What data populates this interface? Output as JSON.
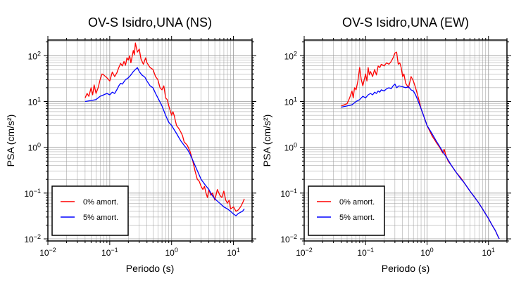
{
  "chart_data": [
    {
      "type": "line",
      "title": "OV-S Isidro,UNA (NS)",
      "xlabel": "Periodo (s)",
      "ylabel": "PSA (cm/s²)",
      "xscale": "log",
      "yscale": "log",
      "xlim": [
        0.01,
        20
      ],
      "ylim": [
        0.009,
        220
      ],
      "x_ticks": [
        {
          "base": "10",
          "exp": "−2"
        },
        {
          "base": "10",
          "exp": "−1"
        },
        {
          "base": "10",
          "exp": "0"
        },
        {
          "base": "10",
          "exp": "1"
        }
      ],
      "y_ticks": [
        {
          "base": "10",
          "exp": "−2"
        },
        {
          "base": "10",
          "exp": "−1"
        },
        {
          "base": "10",
          "exp": "0"
        },
        {
          "base": "10",
          "exp": "1"
        },
        {
          "base": "10",
          "exp": "2"
        }
      ],
      "grid": true,
      "legend_position": "bottom-left",
      "series": [
        {
          "name": "0% amort.",
          "color": "#ff0000",
          "points": [
            [
              0.04,
              12
            ],
            [
              0.043,
              15
            ],
            [
              0.046,
              13
            ],
            [
              0.05,
              20
            ],
            [
              0.053,
              14
            ],
            [
              0.056,
              23
            ],
            [
              0.06,
              15
            ],
            [
              0.065,
              20
            ],
            [
              0.07,
              30
            ],
            [
              0.075,
              40
            ],
            [
              0.08,
              38
            ],
            [
              0.09,
              33
            ],
            [
              0.1,
              28
            ],
            [
              0.11,
              44
            ],
            [
              0.12,
              35
            ],
            [
              0.13,
              42
            ],
            [
              0.14,
              55
            ],
            [
              0.15,
              68
            ],
            [
              0.16,
              60
            ],
            [
              0.17,
              75
            ],
            [
              0.18,
              62
            ],
            [
              0.19,
              90
            ],
            [
              0.2,
              80
            ],
            [
              0.21,
              100
            ],
            [
              0.22,
              70
            ],
            [
              0.23,
              95
            ],
            [
              0.24,
              130
            ],
            [
              0.25,
              105
            ],
            [
              0.26,
              190
            ],
            [
              0.27,
              150
            ],
            [
              0.28,
              120
            ],
            [
              0.3,
              140
            ],
            [
              0.32,
              85
            ],
            [
              0.35,
              65
            ],
            [
              0.38,
              90
            ],
            [
              0.4,
              70
            ],
            [
              0.45,
              55
            ],
            [
              0.5,
              50
            ],
            [
              0.55,
              35
            ],
            [
              0.6,
              30
            ],
            [
              0.65,
              20
            ],
            [
              0.7,
              18
            ],
            [
              0.75,
              22
            ],
            [
              0.8,
              12
            ],
            [
              0.85,
              11
            ],
            [
              0.9,
              8
            ],
            [
              1.0,
              5
            ],
            [
              1.05,
              6
            ],
            [
              1.1,
              5
            ],
            [
              1.2,
              3
            ],
            [
              1.3,
              2.6
            ],
            [
              1.4,
              2.2
            ],
            [
              1.5,
              1.8
            ],
            [
              1.6,
              1.3
            ],
            [
              1.7,
              1.2
            ],
            [
              1.8,
              1.1
            ],
            [
              2.0,
              0.8
            ],
            [
              2.2,
              0.5
            ],
            [
              2.4,
              0.3
            ],
            [
              2.6,
              0.2
            ],
            [
              2.8,
              0.18
            ],
            [
              3.0,
              0.14
            ],
            [
              3.2,
              0.12
            ],
            [
              3.4,
              0.14
            ],
            [
              3.6,
              0.1
            ],
            [
              3.8,
              0.08
            ],
            [
              4.0,
              0.12
            ],
            [
              4.3,
              0.09
            ],
            [
              4.6,
              0.1
            ],
            [
              5.0,
              0.07
            ],
            [
              5.5,
              0.12
            ],
            [
              6.0,
              0.09
            ],
            [
              6.5,
              0.08
            ],
            [
              7.0,
              0.11
            ],
            [
              7.5,
              0.07
            ],
            [
              8.0,
              0.06
            ],
            [
              8.5,
              0.07
            ],
            [
              9.0,
              0.045
            ],
            [
              10.0,
              0.05
            ],
            [
              11.0,
              0.04
            ],
            [
              12.0,
              0.043
            ],
            [
              13.0,
              0.05
            ],
            [
              14.0,
              0.06
            ],
            [
              15.0,
              0.075
            ]
          ]
        },
        {
          "name": "5% amort.",
          "color": "#0000ff",
          "points": [
            [
              0.04,
              10
            ],
            [
              0.05,
              10.5
            ],
            [
              0.06,
              11
            ],
            [
              0.07,
              13
            ],
            [
              0.08,
              14
            ],
            [
              0.09,
              15
            ],
            [
              0.1,
              14
            ],
            [
              0.11,
              16
            ],
            [
              0.12,
              15
            ],
            [
              0.13,
              18
            ],
            [
              0.14,
              22
            ],
            [
              0.15,
              25
            ],
            [
              0.16,
              24
            ],
            [
              0.17,
              27
            ],
            [
              0.18,
              30
            ],
            [
              0.2,
              33
            ],
            [
              0.22,
              38
            ],
            [
              0.24,
              45
            ],
            [
              0.26,
              50
            ],
            [
              0.28,
              55
            ],
            [
              0.3,
              45
            ],
            [
              0.33,
              38
            ],
            [
              0.37,
              34
            ],
            [
              0.4,
              28
            ],
            [
              0.45,
              22
            ],
            [
              0.5,
              20
            ],
            [
              0.55,
              15
            ],
            [
              0.6,
              12
            ],
            [
              0.7,
              8
            ],
            [
              0.8,
              5
            ],
            [
              0.9,
              3.5
            ],
            [
              1.0,
              3
            ],
            [
              1.2,
              2
            ],
            [
              1.4,
              1.4
            ],
            [
              1.6,
              1.1
            ],
            [
              1.8,
              0.9
            ],
            [
              2.0,
              0.7
            ],
            [
              2.5,
              0.35
            ],
            [
              3.0,
              0.2
            ],
            [
              3.5,
              0.15
            ],
            [
              4.0,
              0.12
            ],
            [
              4.5,
              0.09
            ],
            [
              5.0,
              0.075
            ],
            [
              6.0,
              0.06
            ],
            [
              7.0,
              0.05
            ],
            [
              8.0,
              0.045
            ],
            [
              9.0,
              0.04
            ],
            [
              10.0,
              0.035
            ],
            [
              11.0,
              0.032
            ],
            [
              12.0,
              0.036
            ],
            [
              13.0,
              0.038
            ],
            [
              14.0,
              0.04
            ],
            [
              15.0,
              0.045
            ]
          ]
        }
      ]
    },
    {
      "type": "line",
      "title": "OV-S Isidro,UNA (EW)",
      "xlabel": "Periodo (s)",
      "ylabel": "PSA (cm/s²)",
      "xscale": "log",
      "yscale": "log",
      "xlim": [
        0.01,
        20
      ],
      "ylim": [
        0.009,
        220
      ],
      "x_ticks": [
        {
          "base": "10",
          "exp": "−2"
        },
        {
          "base": "10",
          "exp": "−1"
        },
        {
          "base": "10",
          "exp": "0"
        },
        {
          "base": "10",
          "exp": "1"
        }
      ],
      "y_ticks": [
        {
          "base": "10",
          "exp": "−2"
        },
        {
          "base": "10",
          "exp": "−1"
        },
        {
          "base": "10",
          "exp": "0"
        },
        {
          "base": "10",
          "exp": "1"
        },
        {
          "base": "10",
          "exp": "2"
        }
      ],
      "grid": true,
      "legend_position": "bottom-left",
      "series": [
        {
          "name": "0% amort.",
          "color": "#ff0000",
          "points": [
            [
              0.04,
              8
            ],
            [
              0.045,
              8.5
            ],
            [
              0.05,
              9
            ],
            [
              0.055,
              12
            ],
            [
              0.06,
              17
            ],
            [
              0.063,
              12
            ],
            [
              0.066,
              20
            ],
            [
              0.07,
              18
            ],
            [
              0.075,
              28
            ],
            [
              0.08,
              55
            ],
            [
              0.085,
              30
            ],
            [
              0.09,
              22
            ],
            [
              0.095,
              30
            ],
            [
              0.1,
              40
            ],
            [
              0.105,
              28
            ],
            [
              0.11,
              55
            ],
            [
              0.115,
              38
            ],
            [
              0.12,
              45
            ],
            [
              0.13,
              35
            ],
            [
              0.14,
              50
            ],
            [
              0.15,
              38
            ],
            [
              0.16,
              60
            ],
            [
              0.17,
              55
            ],
            [
              0.18,
              65
            ],
            [
              0.2,
              60
            ],
            [
              0.22,
              70
            ],
            [
              0.24,
              65
            ],
            [
              0.26,
              75
            ],
            [
              0.28,
              90
            ],
            [
              0.3,
              115
            ],
            [
              0.32,
              120
            ],
            [
              0.34,
              65
            ],
            [
              0.36,
              70
            ],
            [
              0.38,
              55
            ],
            [
              0.4,
              35
            ],
            [
              0.42,
              40
            ],
            [
              0.45,
              25
            ],
            [
              0.5,
              20
            ],
            [
              0.55,
              35
            ],
            [
              0.6,
              28
            ],
            [
              0.65,
              20
            ],
            [
              0.7,
              14
            ],
            [
              0.75,
              10
            ],
            [
              0.8,
              7
            ],
            [
              0.9,
              4.5
            ],
            [
              1.0,
              3
            ],
            [
              1.1,
              2.3
            ],
            [
              1.2,
              1.8
            ],
            [
              1.4,
              1.3
            ],
            [
              1.6,
              1
            ],
            [
              1.8,
              0.75
            ],
            [
              1.9,
              0.9
            ],
            [
              2.0,
              0.7
            ],
            [
              2.2,
              0.5
            ],
            [
              2.5,
              0.4
            ],
            [
              3.0,
              0.28
            ],
            [
              3.5,
              0.22
            ],
            [
              4.0,
              0.17
            ],
            [
              5.0,
              0.11
            ],
            [
              6.0,
              0.08
            ],
            [
              7.0,
              0.06
            ],
            [
              8.0,
              0.045
            ],
            [
              9.0,
              0.035
            ],
            [
              10.0,
              0.028
            ],
            [
              11.0,
              0.022
            ],
            [
              12.0,
              0.018
            ],
            [
              13.0,
              0.015
            ],
            [
              14.0,
              0.012
            ],
            [
              15.0,
              0.01
            ]
          ]
        },
        {
          "name": "5% amort.",
          "color": "#0000ff",
          "points": [
            [
              0.04,
              7.5
            ],
            [
              0.05,
              8
            ],
            [
              0.06,
              8.5
            ],
            [
              0.07,
              10
            ],
            [
              0.08,
              11
            ],
            [
              0.09,
              13
            ],
            [
              0.1,
              12
            ],
            [
              0.11,
              14
            ],
            [
              0.12,
              15
            ],
            [
              0.13,
              14
            ],
            [
              0.14,
              16
            ],
            [
              0.15,
              15
            ],
            [
              0.16,
              17
            ],
            [
              0.17,
              16
            ],
            [
              0.18,
              18
            ],
            [
              0.2,
              17
            ],
            [
              0.22,
              19
            ],
            [
              0.24,
              20
            ],
            [
              0.26,
              19
            ],
            [
              0.28,
              22
            ],
            [
              0.3,
              24
            ],
            [
              0.32,
              20
            ],
            [
              0.35,
              22
            ],
            [
              0.4,
              21
            ],
            [
              0.45,
              20
            ],
            [
              0.5,
              21
            ],
            [
              0.55,
              18
            ],
            [
              0.6,
              17
            ],
            [
              0.65,
              14
            ],
            [
              0.7,
              11
            ],
            [
              0.8,
              7
            ],
            [
              0.9,
              4.5
            ],
            [
              1.0,
              3
            ],
            [
              1.2,
              2
            ],
            [
              1.4,
              1.4
            ],
            [
              1.6,
              1.05
            ],
            [
              1.8,
              0.8
            ],
            [
              2.0,
              0.65
            ],
            [
              2.5,
              0.4
            ],
            [
              3.0,
              0.28
            ],
            [
              3.5,
              0.21
            ],
            [
              4.0,
              0.17
            ],
            [
              5.0,
              0.11
            ],
            [
              6.0,
              0.08
            ],
            [
              7.0,
              0.06
            ],
            [
              8.0,
              0.045
            ],
            [
              9.0,
              0.035
            ],
            [
              10.0,
              0.028
            ],
            [
              11.0,
              0.022
            ],
            [
              12.0,
              0.018
            ],
            [
              13.0,
              0.015
            ],
            [
              14.0,
              0.012
            ],
            [
              15.0,
              0.01
            ]
          ]
        }
      ]
    }
  ]
}
